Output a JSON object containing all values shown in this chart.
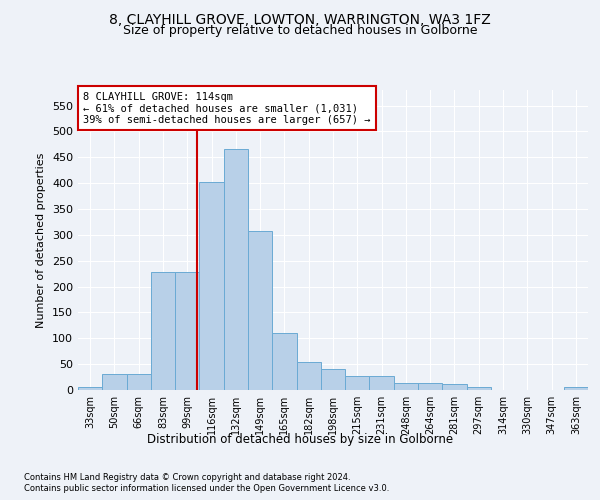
{
  "title1": "8, CLAYHILL GROVE, LOWTON, WARRINGTON, WA3 1FZ",
  "title2": "Size of property relative to detached houses in Golborne",
  "xlabel": "Distribution of detached houses by size in Golborne",
  "ylabel": "Number of detached properties",
  "categories": [
    "33sqm",
    "50sqm",
    "66sqm",
    "83sqm",
    "99sqm",
    "116sqm",
    "132sqm",
    "149sqm",
    "165sqm",
    "182sqm",
    "198sqm",
    "215sqm",
    "231sqm",
    "248sqm",
    "264sqm",
    "281sqm",
    "297sqm",
    "314sqm",
    "330sqm",
    "347sqm",
    "363sqm"
  ],
  "values": [
    6,
    30,
    30,
    228,
    228,
    403,
    465,
    307,
    110,
    54,
    40,
    27,
    27,
    14,
    14,
    11,
    6,
    0,
    0,
    0,
    6
  ],
  "bar_color": "#b8d0e8",
  "bar_edge_color": "#6aaad4",
  "annotation_box_text": "8 CLAYHILL GROVE: 114sqm\n← 61% of detached houses are smaller (1,031)\n39% of semi-detached houses are larger (657) →",
  "footer1": "Contains HM Land Registry data © Crown copyright and database right 2024.",
  "footer2": "Contains public sector information licensed under the Open Government Licence v3.0.",
  "bg_color": "#eef2f8",
  "plot_bg_color": "#eef2f8",
  "grid_color": "#ffffff",
  "ylim": [
    0,
    580
  ],
  "yticks": [
    0,
    50,
    100,
    150,
    200,
    250,
    300,
    350,
    400,
    450,
    500,
    550
  ],
  "red_line_color": "#cc0000",
  "annotation_box_edge_color": "#cc0000",
  "title_fontsize": 10,
  "subtitle_fontsize": 9
}
